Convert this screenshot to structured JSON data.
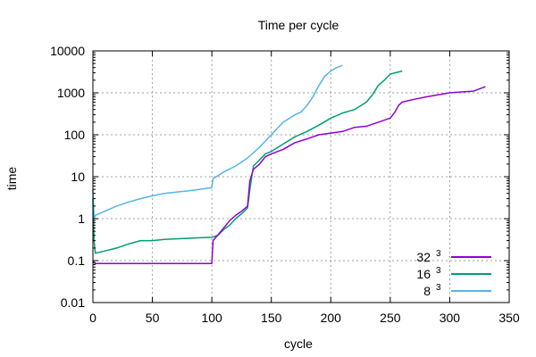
{
  "chart_data": {
    "type": "line",
    "title": "Time per cycle",
    "xlabel": "cycle",
    "ylabel": "time",
    "xlim": [
      0,
      350
    ],
    "ylim": [
      0.01,
      10000
    ],
    "y_scale": "log",
    "grid": true,
    "legend_position": "bottom-right",
    "x_ticks": [
      "0",
      "50",
      "100",
      "150",
      "200",
      "250",
      "300",
      "350"
    ],
    "y_ticks": [
      "0.01",
      "0.1",
      "1",
      "10",
      "100",
      "1000",
      "10000"
    ],
    "series": [
      {
        "name": "32",
        "name_superscript": "3",
        "color": "#9400d3",
        "x": [
          0,
          1,
          2,
          10,
          20,
          30,
          40,
          50,
          60,
          70,
          80,
          90,
          100,
          101,
          110,
          115,
          120,
          125,
          130,
          132,
          135,
          140,
          145,
          150,
          160,
          170,
          180,
          190,
          200,
          210,
          220,
          230,
          240,
          250,
          254,
          257,
          260,
          270,
          280,
          290,
          300,
          310,
          320,
          330
        ],
        "y": [
          0.1,
          0.09,
          0.085,
          0.085,
          0.085,
          0.085,
          0.085,
          0.085,
          0.085,
          0.085,
          0.085,
          0.085,
          0.085,
          0.3,
          0.6,
          0.9,
          1.2,
          1.5,
          2,
          8,
          15,
          20,
          30,
          35,
          45,
          65,
          80,
          100,
          110,
          120,
          150,
          160,
          200,
          250,
          350,
          500,
          600,
          700,
          800,
          900,
          1000,
          1050,
          1100,
          1400
        ]
      },
      {
        "name": "16",
        "name_superscript": "3",
        "color": "#009e73",
        "x": [
          0,
          1,
          2,
          10,
          20,
          30,
          40,
          50,
          60,
          70,
          80,
          90,
          100,
          105,
          110,
          115,
          120,
          125,
          130,
          132,
          135,
          140,
          145,
          150,
          160,
          170,
          180,
          190,
          200,
          210,
          220,
          230,
          235,
          240,
          245,
          250,
          260
        ],
        "y": [
          3,
          0.3,
          0.15,
          0.17,
          0.2,
          0.25,
          0.3,
          0.3,
          0.32,
          0.33,
          0.34,
          0.35,
          0.36,
          0.4,
          0.55,
          0.7,
          1,
          1.3,
          1.8,
          5,
          18,
          25,
          35,
          40,
          60,
          90,
          120,
          170,
          250,
          330,
          400,
          600,
          900,
          1500,
          2000,
          2800,
          3300
        ]
      },
      {
        "name": "8",
        "name_superscript": "3",
        "color": "#56b4e9",
        "x": [
          0,
          1,
          2,
          10,
          20,
          30,
          40,
          50,
          60,
          70,
          80,
          90,
          100,
          101,
          110,
          120,
          130,
          140,
          150,
          160,
          170,
          175,
          180,
          185,
          190,
          195,
          200,
          205,
          210
        ],
        "y": [
          5,
          1,
          1.2,
          1.5,
          2,
          2.5,
          3,
          3.5,
          4,
          4.3,
          4.6,
          5,
          5.5,
          9,
          13,
          18,
          28,
          50,
          100,
          200,
          300,
          350,
          500,
          800,
          1500,
          2500,
          3300,
          4000,
          4500
        ]
      }
    ]
  }
}
